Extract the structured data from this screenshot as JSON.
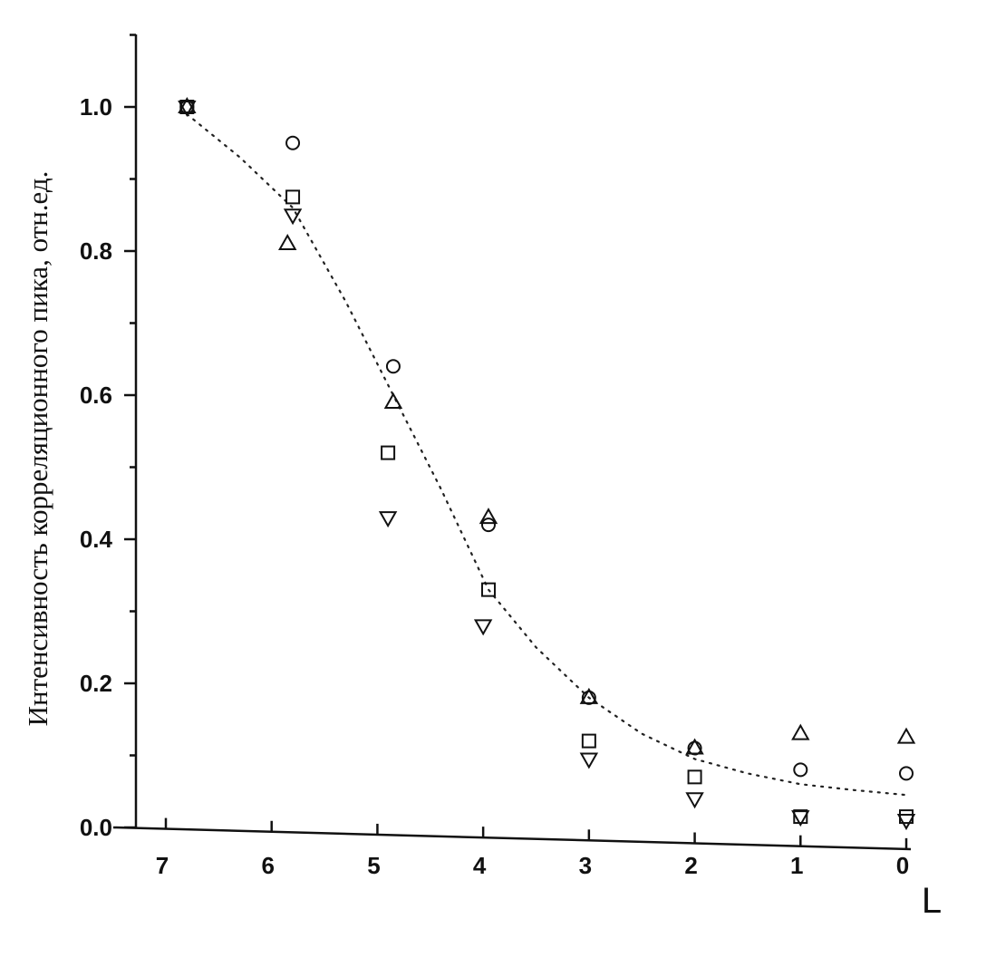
{
  "chart_data": {
    "type": "scatter",
    "title": "",
    "xlabel": "L",
    "ylabel": "Интенсивность корреляционного пика, отн.ед.",
    "x_reversed": true,
    "xlim": [
      7.3,
      -0.3
    ],
    "ylim": [
      0,
      1.1
    ],
    "x_ticks": [
      "7",
      "6",
      "5",
      "4",
      "3",
      "2",
      "1",
      "0"
    ],
    "x_tick_values": [
      7,
      6,
      5,
      4,
      3,
      2,
      1,
      0
    ],
    "y_ticks": [
      "0.0",
      "0.2",
      "0.4",
      "0.6",
      "0.8",
      "1.0"
    ],
    "y_tick_values": [
      0.0,
      0.2,
      0.4,
      0.6,
      0.8,
      1.0
    ],
    "grid": false,
    "legend": "none",
    "series": [
      {
        "marker": "circle",
        "points": [
          [
            6.8,
            1.0
          ],
          [
            5.8,
            0.95
          ],
          [
            4.85,
            0.64
          ],
          [
            3.95,
            0.42
          ],
          [
            3.0,
            0.18
          ],
          [
            2.0,
            0.11
          ],
          [
            1.0,
            0.08
          ],
          [
            0.0,
            0.075
          ]
        ]
      },
      {
        "marker": "square",
        "points": [
          [
            6.8,
            1.0
          ],
          [
            5.8,
            0.875
          ],
          [
            4.9,
            0.52
          ],
          [
            3.95,
            0.33
          ],
          [
            3.0,
            0.12
          ],
          [
            2.0,
            0.07
          ],
          [
            1.0,
            0.015
          ],
          [
            0.0,
            0.015
          ]
        ]
      },
      {
        "marker": "triangle-up",
        "points": [
          [
            6.8,
            1.0
          ],
          [
            5.85,
            0.81
          ],
          [
            4.85,
            0.59
          ],
          [
            3.95,
            0.43
          ],
          [
            3.0,
            0.18
          ],
          [
            2.0,
            0.11
          ],
          [
            1.0,
            0.13
          ],
          [
            0.0,
            0.125
          ]
        ]
      },
      {
        "marker": "triangle-down",
        "points": [
          [
            6.8,
            1.0
          ],
          [
            5.8,
            0.85
          ],
          [
            4.9,
            0.43
          ],
          [
            4.0,
            0.28
          ],
          [
            3.0,
            0.095
          ],
          [
            2.0,
            0.04
          ],
          [
            1.0,
            0.015
          ],
          [
            0.0,
            0.01
          ]
        ]
      }
    ],
    "fit_line": {
      "style": "dotted",
      "points": [
        [
          6.8,
          0.99
        ],
        [
          6.3,
          0.93
        ],
        [
          5.8,
          0.86
        ],
        [
          5.3,
          0.73
        ],
        [
          4.85,
          0.6
        ],
        [
          4.4,
          0.47
        ],
        [
          3.95,
          0.33
        ],
        [
          3.5,
          0.25
        ],
        [
          3.0,
          0.18
        ],
        [
          2.5,
          0.13
        ],
        [
          2.0,
          0.095
        ],
        [
          1.5,
          0.075
        ],
        [
          1.0,
          0.06
        ],
        [
          0.5,
          0.052
        ],
        [
          0.0,
          0.045
        ]
      ]
    }
  }
}
